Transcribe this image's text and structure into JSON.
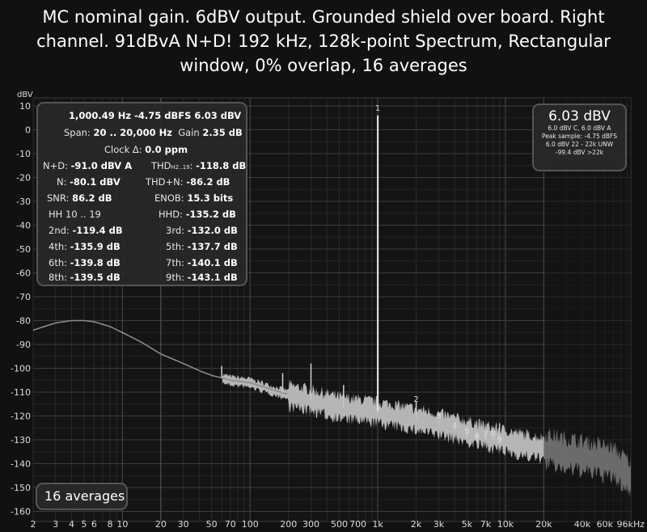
{
  "title": {
    "line1": "MC nominal gain. 6dBV output. Grounded shield over board. Right",
    "line2": "channel. 91dBvA N+D! 192 kHz, 128k-point Spectrum, Rectangular",
    "line3": "window, 0% overlap, 16 averages"
  },
  "colors": {
    "background": "#111111",
    "trace": "#c8c8c8",
    "grid_major": "#3a3a3a",
    "grid_minor": "#262626",
    "harmonic_marker": "#dddddd"
  },
  "stats_panel": {
    "line1": "1,000.49 Hz  -4.75 dBFS  6.03 dBV",
    "span_label": "Span:",
    "span_value": "20 .. 20,000 Hz",
    "gain_label": "Gain",
    "gain_value": "2.35 dB",
    "clock_label": "Clock Δ:",
    "clock_value": "0.0 ppm",
    "nd_label": "N+D:",
    "nd_value": "-91.0 dBV A",
    "thd_label": "THD",
    "thd_sub": "H2..19",
    "thd_value": "-118.8 dB",
    "n_label": "N:",
    "n_value": "-80.1 dBV",
    "thdn_label": "THD+N:",
    "thdn_value": "-86.2 dB",
    "snr_label": "SNR:",
    "snr_value": "86.2 dB",
    "enob_label": "ENOB:",
    "enob_value": "15.3 bits",
    "hh_label": "HH 10 .. 19",
    "hhd_label": "HHD:",
    "hhd_value": "-135.2 dB",
    "h2_label": "2nd:",
    "h2_value": "-119.4 dB",
    "h3_label": "3rd:",
    "h3_value": "-132.0 dB",
    "h4_label": "4th:",
    "h4_value": "-135.9 dB",
    "h5_label": "5th:",
    "h5_value": "-137.7 dB",
    "h6_label": "6th:",
    "h6_value": "-139.8 dB",
    "h7_label": "7th:",
    "h7_value": "-140.1 dB",
    "h8_label": "8th:",
    "h8_value": "-139.5 dB",
    "h9_label": "9th:",
    "h9_value": "-143.1 dB"
  },
  "readout_panel": {
    "main": "6.03 dBV",
    "line1": "6.0 dBV C, 6.0 dBV A",
    "line2": "Peak sample: -4.75 dBFS",
    "line3": "6.0 dBV 22 - 22k UNW",
    "line4": "-99.4 dBV >22k"
  },
  "averages_label": "16 averages",
  "chart_data": {
    "type": "line",
    "ylabel": "dBV",
    "xscale": "log",
    "xlim": [
      2,
      96000
    ],
    "ylim": [
      -165,
      13
    ],
    "grid": true,
    "y_ticks": [
      10,
      0,
      -10,
      -20,
      -30,
      -40,
      -50,
      -60,
      -70,
      -80,
      -90,
      -100,
      -110,
      -120,
      -130,
      -140,
      -150,
      -160
    ],
    "x_ticks": [
      {
        "value": 2,
        "label": "2"
      },
      {
        "value": 3,
        "label": "3"
      },
      {
        "value": 4,
        "label": "4"
      },
      {
        "value": 5,
        "label": "5"
      },
      {
        "value": 6,
        "label": "6"
      },
      {
        "value": 8,
        "label": "8"
      },
      {
        "value": 10,
        "label": "10"
      },
      {
        "value": 20,
        "label": "20"
      },
      {
        "value": 30,
        "label": "30"
      },
      {
        "value": 50,
        "label": "50"
      },
      {
        "value": 70,
        "label": "70"
      },
      {
        "value": 100,
        "label": "100"
      },
      {
        "value": 200,
        "label": "200"
      },
      {
        "value": 300,
        "label": "300"
      },
      {
        "value": 500,
        "label": "500"
      },
      {
        "value": 700,
        "label": "700"
      },
      {
        "value": 1000,
        "label": "1k"
      },
      {
        "value": 2000,
        "label": "2k"
      },
      {
        "value": 3000,
        "label": "3k"
      },
      {
        "value": 5000,
        "label": "5k"
      },
      {
        "value": 7000,
        "label": "7k"
      },
      {
        "value": 10000,
        "label": "10k"
      },
      {
        "value": 20000,
        "label": "20k"
      },
      {
        "value": 40000,
        "label": "40k"
      },
      {
        "value": 60000,
        "label": "60k"
      },
      {
        "value": 96000,
        "label": "96kHz"
      }
    ],
    "series": [
      {
        "x": [
          2,
          3,
          4,
          5,
          6,
          8,
          10,
          14,
          20,
          30,
          40,
          50,
          60,
          70,
          100,
          150,
          200,
          300,
          500,
          700,
          1000,
          2000,
          3000,
          5000,
          7000,
          10000,
          15000,
          20000,
          30000,
          50000,
          70000,
          96000
        ],
        "y": [
          -84,
          -81,
          -80,
          -80,
          -80.5,
          -82.5,
          -85,
          -89,
          -94,
          -98,
          -101,
          -103,
          -104,
          -105,
          -106,
          -109,
          -111,
          -113,
          -116,
          -117,
          -118,
          -121,
          -123,
          -126,
          -128,
          -130,
          -132,
          -133,
          -135,
          -137,
          -139,
          -145
        ]
      }
    ],
    "peaks": [
      {
        "x": 60,
        "y": -99
      },
      {
        "x": 180,
        "y": -102
      },
      {
        "x": 300,
        "y": -98
      },
      {
        "x": 540,
        "y": -107
      },
      {
        "x": 1000.49,
        "y": 6.03
      },
      {
        "x": 2000,
        "y": -114
      },
      {
        "x": 3000,
        "y": -122
      },
      {
        "x": 4000,
        "y": -126
      },
      {
        "x": 5000,
        "y": -129
      },
      {
        "x": 6000,
        "y": -131
      },
      {
        "x": 7000,
        "y": -130
      },
      {
        "x": 8000,
        "y": -130
      },
      {
        "x": 9000,
        "y": -123
      }
    ],
    "annotations": [
      {
        "label": "1",
        "x": 1000,
        "y": 8
      },
      {
        "label": "2",
        "x": 2000,
        "y": -114
      },
      {
        "label": "3",
        "x": 3000,
        "y": -121
      },
      {
        "label": "4",
        "x": 4000,
        "y": -125
      },
      {
        "label": "5",
        "x": 5000,
        "y": -127.5
      },
      {
        "label": "6",
        "x": 6000,
        "y": -129.5
      },
      {
        "label": "7",
        "x": 7000,
        "y": -128.5
      },
      {
        "label": "8",
        "x": 8000,
        "y": -128.5
      },
      {
        "label": "9",
        "x": 9000,
        "y": -131
      }
    ],
    "vertical_markers": [
      20,
      20000
    ]
  }
}
